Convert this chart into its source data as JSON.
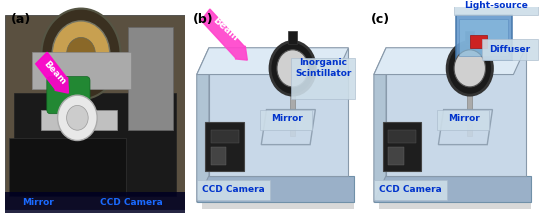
{
  "figsize": [
    5.45,
    2.17
  ],
  "dpi": 100,
  "background_color": "#ffffff",
  "panels": [
    "(a)",
    "(b)",
    "(c)"
  ],
  "panel_label_fontsize": 9,
  "panel_label_color": "#000000",
  "panel_a": {
    "label_bottom_left": "Mirror",
    "label_bottom_right": "CCD Camera",
    "label_color": "#1a6aff",
    "label_fontsize": 6.5,
    "label_fontweight": "bold",
    "beam_label": "Beam",
    "beam_color": "#ff00cc",
    "beam_text_color": "#ffffff"
  },
  "panel_b": {
    "label_inorganic": "Inorganic\nScintillator",
    "label_mirror": "Mirror",
    "label_ccd": "CCD Camera",
    "label_beam": "Beam",
    "label_color": "#0033cc",
    "label_fontsize": 6.5,
    "label_fontweight": "bold",
    "beam_color": "#ff44cc",
    "beam_text_color": "#ffffff"
  },
  "panel_c": {
    "label_lightsource": "Light-source",
    "label_diffuser": "Diffuser",
    "label_mirror": "Mirror",
    "label_ccd": "CCD Camera",
    "label_color": "#0033cc",
    "label_fontsize": 6.5,
    "label_fontweight": "bold"
  }
}
